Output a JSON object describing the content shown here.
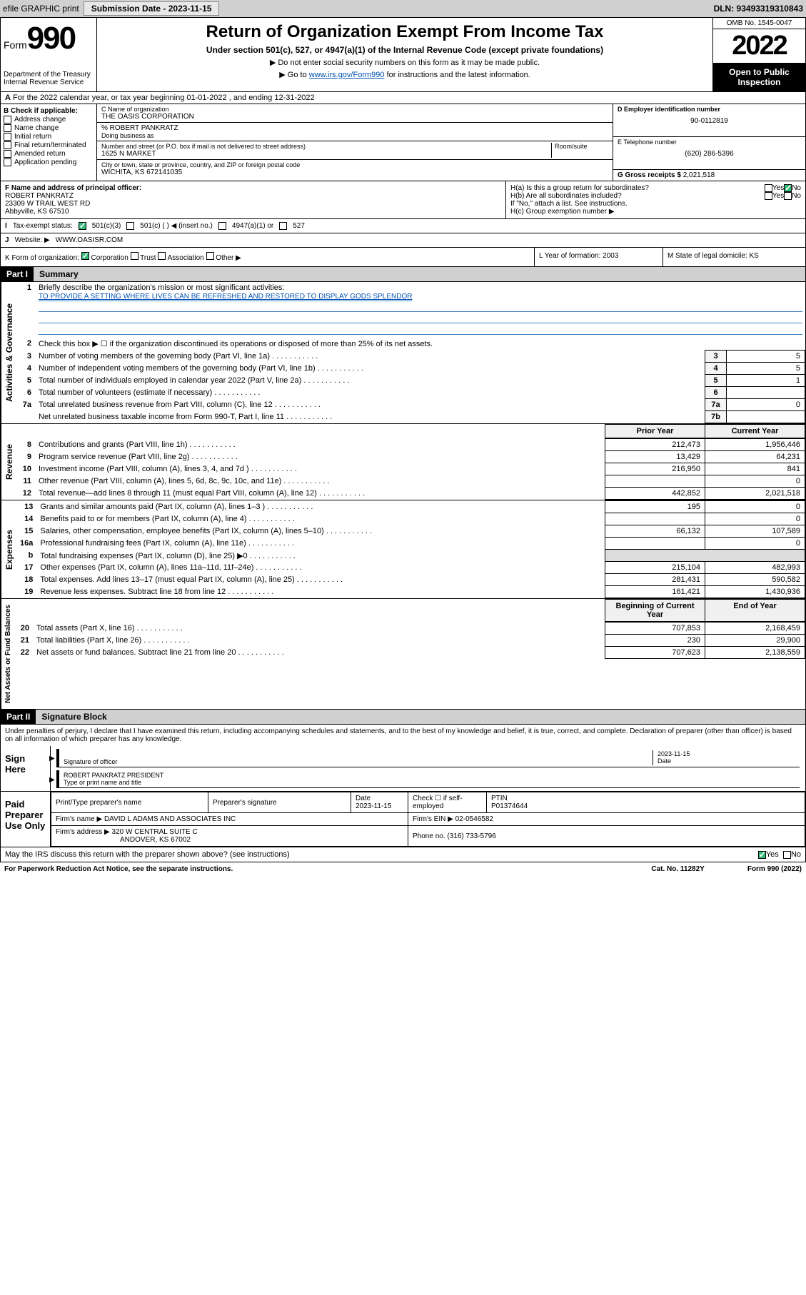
{
  "top": {
    "efile": "efile GRAPHIC print",
    "sub_label": "Submission Date - 2023-11-15",
    "dln": "DLN: 93493319310843"
  },
  "header": {
    "form_word": "Form",
    "form_num": "990",
    "dept": "Department of the Treasury",
    "irs": "Internal Revenue Service",
    "title": "Return of Organization Exempt From Income Tax",
    "subtitle": "Under section 501(c), 527, or 4947(a)(1) of the Internal Revenue Code (except private foundations)",
    "note1": "▶ Do not enter social security numbers on this form as it may be made public.",
    "note2_a": "▶ Go to ",
    "note2_link": "www.irs.gov/Form990",
    "note2_b": " for instructions and the latest information.",
    "omb": "OMB No. 1545-0047",
    "year": "2022",
    "inspection": "Open to Public Inspection"
  },
  "A": {
    "text": "For the 2022 calendar year, or tax year beginning 01-01-2022   , and ending 12-31-2022"
  },
  "B": {
    "label": "B Check if applicable:",
    "items": [
      "Address change",
      "Name change",
      "Initial return",
      "Final return/terminated",
      "Amended return",
      "Application pending"
    ]
  },
  "C": {
    "name_label": "C Name of organization",
    "name": "THE OASIS CORPORATION",
    "care_of": "% ROBERT PANKRATZ",
    "dba_label": "Doing business as",
    "addr_label": "Number and street (or P.O. box if mail is not delivered to street address)",
    "room_label": "Room/suite",
    "addr": "1625 N MARKET",
    "city_label": "City or town, state or province, country, and ZIP or foreign postal code",
    "city": "WICHITA, KS  672141035"
  },
  "D": {
    "label": "D Employer identification number",
    "val": "90-0112819"
  },
  "E": {
    "label": "E Telephone number",
    "val": "(620) 286-5396"
  },
  "G": {
    "label": "G Gross receipts $",
    "val": "2,021,518"
  },
  "F": {
    "label": "F Name and address of principal officer:",
    "name": "ROBERT PANKRATZ",
    "addr1": "23309 W TRAIL WEST RD",
    "addr2": "Abbyville, KS  67510"
  },
  "H": {
    "a": "H(a)  Is this a group return for subordinates?",
    "b": "H(b)  Are all subordinates included?",
    "b_note": "If \"No,\" attach a list. See instructions.",
    "c": "H(c)  Group exemption number ▶",
    "yes": "Yes",
    "no": "No"
  },
  "I": {
    "label": "Tax-exempt status:",
    "opt1": "501(c)(3)",
    "opt2": "501(c) (  ) ◀ (insert no.)",
    "opt3": "4947(a)(1) or",
    "opt4": "527"
  },
  "J": {
    "label": "Website: ▶",
    "val": "WWW.OASISR.COM"
  },
  "K": {
    "label": "K Form of organization:",
    "opts": [
      "Corporation",
      "Trust",
      "Association",
      "Other ▶"
    ]
  },
  "L": {
    "label": "L Year of formation:",
    "val": "2003"
  },
  "M": {
    "label": "M State of legal domicile:",
    "val": "KS"
  },
  "part1": {
    "hdr": "Part I",
    "title": "Summary"
  },
  "summary": {
    "q1": "Briefly describe the organization's mission or most significant activities:",
    "mission": "TO PROVIDE A SETTING WHERE LIVES CAN BE REFRESHED AND RESTORED TO DISPLAY GODS SPLENDOR",
    "q2": "Check this box ▶ ☐  if the organization discontinued its operations or disposed of more than 25% of its net assets.",
    "rows_gov": [
      {
        "n": "3",
        "t": "Number of voting members of the governing body (Part VI, line 1a)",
        "box": "3",
        "v": "5"
      },
      {
        "n": "4",
        "t": "Number of independent voting members of the governing body (Part VI, line 1b)",
        "box": "4",
        "v": "5"
      },
      {
        "n": "5",
        "t": "Total number of individuals employed in calendar year 2022 (Part V, line 2a)",
        "box": "5",
        "v": "1"
      },
      {
        "n": "6",
        "t": "Total number of volunteers (estimate if necessary)",
        "box": "6",
        "v": ""
      },
      {
        "n": "7a",
        "t": "Total unrelated business revenue from Part VIII, column (C), line 12",
        "box": "7a",
        "v": "0"
      },
      {
        "n": "",
        "t": "Net unrelated business taxable income from Form 990-T, Part I, line 11",
        "box": "7b",
        "v": ""
      }
    ],
    "col_hdr_prior": "Prior Year",
    "col_hdr_curr": "Current Year",
    "rows_rev": [
      {
        "n": "8",
        "t": "Contributions and grants (Part VIII, line 1h)",
        "p": "212,473",
        "c": "1,956,446"
      },
      {
        "n": "9",
        "t": "Program service revenue (Part VIII, line 2g)",
        "p": "13,429",
        "c": "64,231"
      },
      {
        "n": "10",
        "t": "Investment income (Part VIII, column (A), lines 3, 4, and 7d )",
        "p": "216,950",
        "c": "841"
      },
      {
        "n": "11",
        "t": "Other revenue (Part VIII, column (A), lines 5, 6d, 8c, 9c, 10c, and 11e)",
        "p": "",
        "c": "0"
      },
      {
        "n": "12",
        "t": "Total revenue—add lines 8 through 11 (must equal Part VIII, column (A), line 12)",
        "p": "442,852",
        "c": "2,021,518"
      }
    ],
    "rows_exp": [
      {
        "n": "13",
        "t": "Grants and similar amounts paid (Part IX, column (A), lines 1–3 )",
        "p": "195",
        "c": "0"
      },
      {
        "n": "14",
        "t": "Benefits paid to or for members (Part IX, column (A), line 4)",
        "p": "",
        "c": "0"
      },
      {
        "n": "15",
        "t": "Salaries, other compensation, employee benefits (Part IX, column (A), lines 5–10)",
        "p": "66,132",
        "c": "107,589"
      },
      {
        "n": "16a",
        "t": "Professional fundraising fees (Part IX, column (A), line 11e)",
        "p": "",
        "c": "0"
      },
      {
        "n": "b",
        "t": "Total fundraising expenses (Part IX, column (D), line 25) ▶0",
        "p": "—",
        "c": "—"
      },
      {
        "n": "17",
        "t": "Other expenses (Part IX, column (A), lines 11a–11d, 11f–24e)",
        "p": "215,104",
        "c": "482,993"
      },
      {
        "n": "18",
        "t": "Total expenses. Add lines 13–17 (must equal Part IX, column (A), line 25)",
        "p": "281,431",
        "c": "590,582"
      },
      {
        "n": "19",
        "t": "Revenue less expenses. Subtract line 18 from line 12",
        "p": "161,421",
        "c": "1,430,936"
      }
    ],
    "col_hdr_beg": "Beginning of Current Year",
    "col_hdr_end": "End of Year",
    "rows_net": [
      {
        "n": "20",
        "t": "Total assets (Part X, line 16)",
        "p": "707,853",
        "c": "2,168,459"
      },
      {
        "n": "21",
        "t": "Total liabilities (Part X, line 26)",
        "p": "230",
        "c": "29,900"
      },
      {
        "n": "22",
        "t": "Net assets or fund balances. Subtract line 21 from line 20",
        "p": "707,623",
        "c": "2,138,559"
      }
    ],
    "vlabels": {
      "gov": "Activities & Governance",
      "rev": "Revenue",
      "exp": "Expenses",
      "net": "Net Assets or Fund Balances"
    }
  },
  "part2": {
    "hdr": "Part II",
    "title": "Signature Block"
  },
  "sig": {
    "intro": "Under penalties of perjury, I declare that I have examined this return, including accompanying schedules and statements, and to the best of my knowledge and belief, it is true, correct, and complete. Declaration of preparer (other than officer) is based on all information of which preparer has any knowledge.",
    "sign_here": "Sign Here",
    "officer_sig": "Signature of officer",
    "date": "2023-11-15",
    "date_label": "Date",
    "officer_name": "ROBERT PANKRATZ  PRESIDENT",
    "name_label": "Type or print name and title",
    "paid": "Paid Preparer Use Only",
    "prep_name_label": "Print/Type preparer's name",
    "prep_sig_label": "Preparer's signature",
    "prep_date": "2023-11-15",
    "check_if": "Check ☐ if self-employed",
    "ptin_label": "PTIN",
    "ptin": "P01374644",
    "firm_name_label": "Firm's name    ▶",
    "firm_name": "DAVID L ADAMS AND ASSOCIATES INC",
    "firm_ein_label": "Firm's EIN ▶",
    "firm_ein": "02-0546582",
    "firm_addr_label": "Firm's address ▶",
    "firm_addr1": "320 W CENTRAL SUITE C",
    "firm_addr2": "ANDOVER, KS  67002",
    "phone_label": "Phone no.",
    "phone": "(316) 733-5796",
    "discuss": "May the IRS discuss this return with the preparer shown above? (see instructions)"
  },
  "foot": {
    "left": "For Paperwork Reduction Act Notice, see the separate instructions.",
    "mid": "Cat. No. 11282Y",
    "right": "Form 990 (2022)"
  },
  "colors": {
    "link": "#0050b3",
    "rule": "#4080c0"
  }
}
